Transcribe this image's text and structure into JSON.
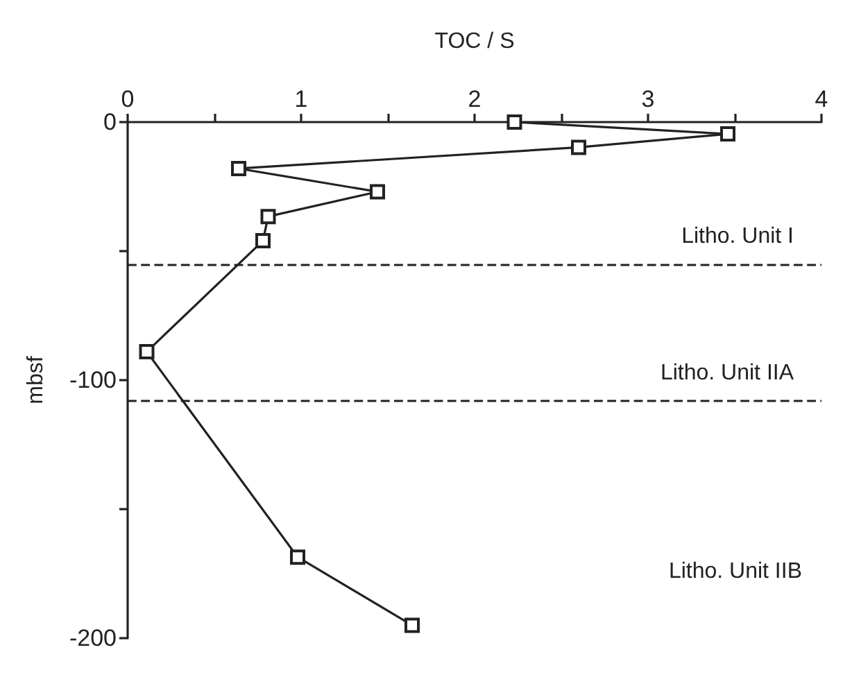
{
  "chart_data": {
    "type": "line",
    "xlabel": "TOC / S",
    "ylabel": "mbsf",
    "x": [
      2.23,
      3.46,
      2.6,
      0.64,
      1.44,
      0.81,
      0.78,
      0.11,
      0.98,
      1.64
    ],
    "values": [
      0,
      -4.6,
      -9.8,
      -18,
      -27,
      -36.6,
      -46,
      -89,
      -168.6,
      -195
    ],
    "color": "#222222",
    "marker": "square",
    "line_style": "solid",
    "grid": false,
    "xlim": [
      0,
      4
    ],
    "xticks": [
      0,
      {
        "value": 0.5,
        "label": null
      },
      1,
      {
        "value": 1.5,
        "label": null
      },
      2,
      {
        "value": 2.5,
        "label": null
      },
      3,
      {
        "value": 3.5,
        "label": null
      },
      4
    ],
    "ylim": [
      -200,
      0
    ],
    "yticks": [
      -200,
      {
        "value": -150,
        "label": null
      },
      -100,
      {
        "value": -50,
        "label": null
      },
      0
    ],
    "ref_lines": [
      {
        "axis": "y",
        "value": -55,
        "line_style": "dashed",
        "label": "Litho. Unit I"
      },
      {
        "axis": "y",
        "value": -108,
        "line_style": "dashed",
        "label": "Litho. Unit IIA"
      }
    ],
    "annotations": [
      "Litho. Unit IIB"
    ]
  }
}
